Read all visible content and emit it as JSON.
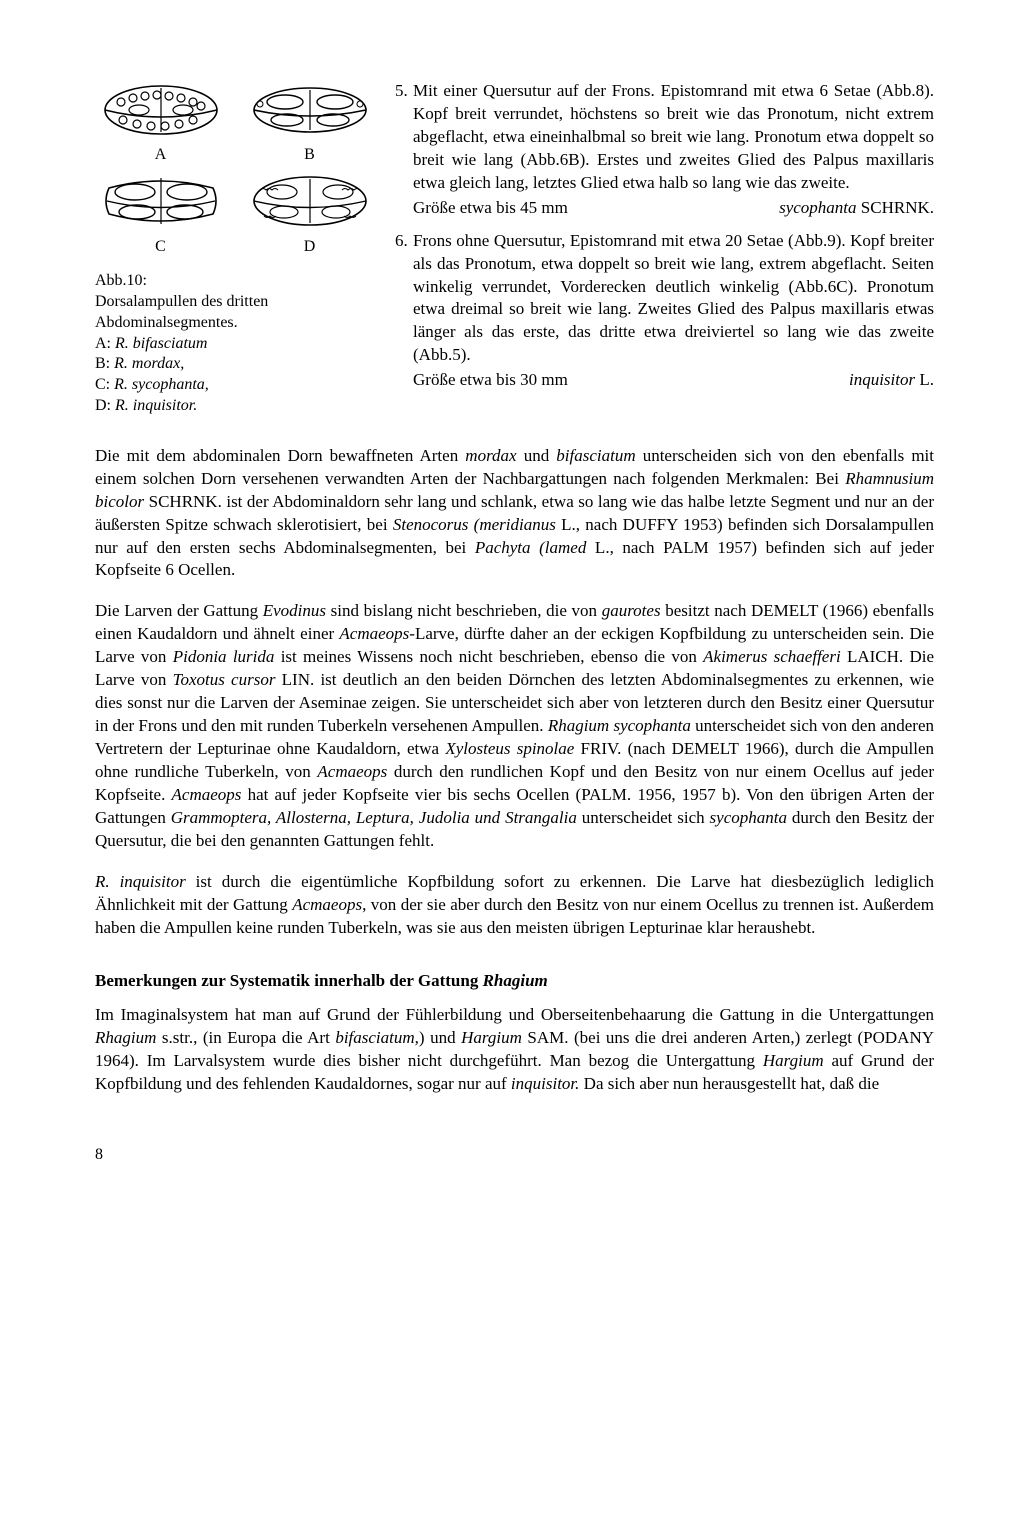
{
  "figure": {
    "label_A": "A",
    "label_B": "B",
    "label_C": "C",
    "label_D": "D",
    "caption_line1": "Abb.10:",
    "caption_line2": "Dorsalampullen des dritten",
    "caption_line3": "Abdominalsegmentes.",
    "caption_line4a": "A: ",
    "caption_line4b": "R. bifasciatum",
    "caption_line5a": "B: ",
    "caption_line5b": "R. mordax,",
    "caption_line6a": "C: ",
    "caption_line6b": "R. sycophanta,",
    "caption_line7a": "D: ",
    "caption_line7b": "R. inquisitor."
  },
  "key": {
    "item5_num": "5.",
    "item5_text": "Mit einer Quersutur auf der Frons. Epistomrand mit etwa 6 Setae (Abb.8). Kopf breit verrundet, höchstens so breit wie das Pronotum, nicht extrem abgeflacht, etwa eineinhalbmal so breit wie lang. Pronotum etwa doppelt so breit wie lang (Abb.6B). Erstes und zweites Glied des Palpus maxillaris etwa gleich lang, letztes Glied etwa halb so lang wie das zweite.",
    "item5_size": "Größe etwa bis 45 mm",
    "item5_taxon_i": "sycophanta",
    "item5_taxon_r": " SCHRNK.",
    "item6_num": "6.",
    "item6_text": "Frons ohne Quersutur, Epistomrand mit etwa 20 Setae (Abb.9). Kopf breiter als das Pronotum, etwa doppelt so breit wie lang, extrem abgeflacht. Seiten winkelig verrundet, Vorderecken deutlich winkelig (Abb.6C). Pronotum etwa dreimal so breit wie lang. Zweites Glied des Palpus maxillaris etwas länger als das erste, das dritte etwa dreiviertel so lang wie das zweite (Abb.5).",
    "item6_size": "Größe etwa bis 30 mm",
    "item6_taxon_i": "inquisitor",
    "item6_taxon_r": " L."
  },
  "paras": {
    "p1": "Die mit dem abdominalen Dorn bewaffneten Arten <em>mordax</em> und <em>bifasciatum</em> unterscheiden sich von den ebenfalls mit einem solchen Dorn versehenen verwandten Arten der Nachbargattungen nach folgenden Merkmalen: Bei <em>Rhamnusium bicolor</em> SCHRNK. ist der Abdominaldorn sehr lang und schlank, etwa so lang wie das halbe letzte Segment und nur an der äußersten Spitze schwach sklerotisiert, bei <em>Stenocorus (meridianus</em> L., nach DUFFY 1953) befinden sich Dorsalampullen nur auf den ersten sechs Abdominalsegmenten, bei <em>Pachyta (lamed</em> L., nach PALM 1957) befinden sich auf jeder Kopfseite 6 Ocellen.",
    "p2": "Die Larven der Gattung <em>Evodinus</em> sind bislang nicht beschrieben, die von <em>gaurotes</em> besitzt nach DEMELT (1966) ebenfalls einen Kaudaldorn und ähnelt einer <em>Acmaeops</em>-Larve, dürfte daher an der eckigen Kopfbildung zu unterscheiden sein. Die Larve von <em>Pidonia lurida</em> ist meines Wissens noch nicht beschrieben, ebenso die von <em>Akimerus schaefferi</em> LAICH. Die Larve von <em>Toxotus cursor</em> LIN. ist deutlich an den beiden Dörnchen des letzten Abdominalsegmentes zu erkennen, wie dies sonst nur die Larven der Aseminae zeigen. Sie unterscheidet sich aber von letzteren durch den Besitz einer Quersutur in der Frons und den mit runden Tuberkeln versehenen Ampullen. <em>Rhagium sycophanta</em> unterscheidet sich von den anderen Vertretern der Lepturinae ohne Kaudaldorn, etwa <em>Xylosteus spinolae</em> FRIV. (nach DEMELT 1966), durch die Ampullen ohne rundliche Tuberkeln, von <em>Acmaeops</em> durch den rundlichen Kopf und den Besitz von nur einem Ocellus auf jeder Kopfseite. <em>Acmaeops</em> hat auf jeder Kopfseite vier bis sechs Ocellen (PALM. 1956, 1957 b). Von den übrigen Arten der Gattungen <em>Grammoptera, Allosterna, Leptura, Judolia und Strangalia</em> unterscheidet sich <em>sycophanta</em> durch den Besitz der Quersutur, die bei den genannten Gattungen fehlt.",
    "p3": "<em>R. inquisitor</em> ist durch die eigentümliche Kopfbildung sofort zu erkennen. Die Larve hat diesbezüglich lediglich Ähnlichkeit mit der Gattung <em>Acmaeops</em>, von der sie aber durch den Besitz von nur einem Ocellus zu trennen ist. Außerdem haben die Ampullen keine runden Tuberkeln, was sie aus den meisten übrigen Lepturinae klar heraushebt.",
    "heading": "Bemerkungen zur Systematik innerhalb der Gattung <em>Rhagium</em>",
    "p4": "Im Imaginalsystem hat man auf Grund der Fühlerbildung und Oberseitenbehaarung die Gattung in die Untergattungen <em>Rhagium</em> s.str., (in Europa die Art <em>bifasciatum,</em>) und <em>Hargium</em> SAM. (bei uns die drei anderen Arten,) zerlegt (PODANY 1964). Im Larvalsystem wurde dies bisher nicht durchgeführt. Man bezog die Untergattung <em>Hargium</em> auf Grund der Kopfbildung und des fehlenden Kaudaldornes, sogar nur auf <em>inquisitor.</em> Da sich aber nun herausgestellt hat, daß die"
  },
  "page_number": "8",
  "style": {
    "stroke": "#000000",
    "stroke_width": 1.6,
    "fill": "#ffffff"
  }
}
